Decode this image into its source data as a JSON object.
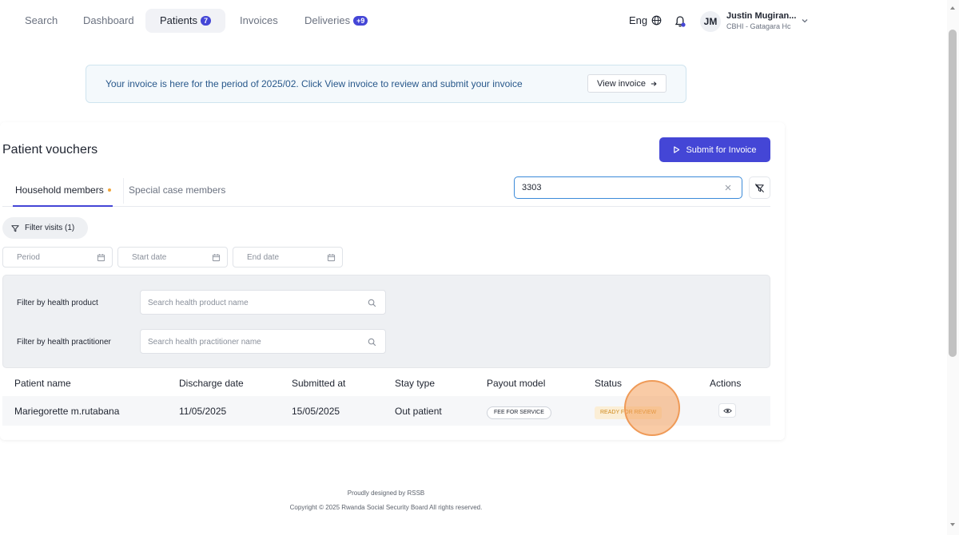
{
  "nav": {
    "items": [
      {
        "label": "Search",
        "badge": null,
        "active": false
      },
      {
        "label": "Dashboard",
        "badge": null,
        "active": false
      },
      {
        "label": "Patients",
        "badge": "7",
        "active": true
      },
      {
        "label": "Invoices",
        "badge": null,
        "active": false
      },
      {
        "label": "Deliveries",
        "badge": "+9",
        "active": false
      }
    ],
    "language": "Eng",
    "user": {
      "initials": "JM",
      "name": "Justin Mugiran...",
      "org": "CBHI - Gatagara Hc"
    }
  },
  "banner": {
    "text": "Your invoice is here for the period of 2025/02. Click View invoice to review and submit your invoice",
    "button_label": "View invoice"
  },
  "page": {
    "title": "Patient vouchers",
    "submit_label": "Submit for Invoice",
    "tabs": [
      {
        "label": "Household members",
        "active": true,
        "dot": true
      },
      {
        "label": "Special case members",
        "active": false,
        "dot": false
      }
    ],
    "search_value": "3303",
    "filter_visits_label": "Filter visits (1)",
    "date_filters": {
      "period": "Period",
      "start": "Start date",
      "end": "End date"
    }
  },
  "filter_panel": {
    "product_label": "Filter by health product",
    "product_placeholder": "Search health product name",
    "practitioner_label": "Filter by health practitioner",
    "practitioner_placeholder": "Search health practitioner name"
  },
  "table": {
    "headers": [
      "Patient name",
      "Discharge date",
      "Submitted at",
      "Stay type",
      "Payout model",
      "Status",
      "Actions"
    ],
    "rows": [
      {
        "patient_name": "Mariegorette m.rutabana",
        "discharge_date": "11/05/2025",
        "submitted_at": "15/05/2025",
        "stay_type": "Out patient",
        "payout_model": "FEE FOR SERVICE",
        "status": "READY FOR REVIEW"
      }
    ]
  },
  "footer": {
    "line1": "Proudly designed by RSSB",
    "line2": "Copyright © 2025 Rwanda Social Security Board All rights reserved."
  },
  "colors": {
    "accent": "#4446d6",
    "banner_bg": "#f4f9fc",
    "banner_text": "#28588b",
    "status_bg": "#fbeed6",
    "status_text": "#d08a1c",
    "click_marker": "#ef9a57"
  }
}
